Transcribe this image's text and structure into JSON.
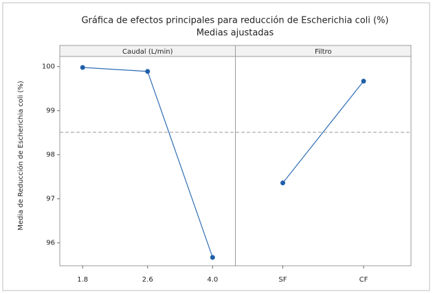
{
  "chart_data": {
    "type": "line",
    "title": "Gráfica de efectos principales para reducción de Escherichia coli (%)",
    "subtitle": "Medias ajustadas",
    "ylabel": "Media de Reducción de Escherichia coli (%)",
    "ylim": [
      95.48,
      100.23
    ],
    "yticks": [
      96,
      97,
      98,
      99,
      100
    ],
    "reference_line": 98.51,
    "color": "#2e6db4",
    "marker_color": "#1f5fa8",
    "panels": [
      {
        "name": "Caudal (L/min)",
        "categories": [
          "1.8",
          "2.6",
          "4.0"
        ],
        "values": [
          99.98,
          99.89,
          95.67
        ]
      },
      {
        "name": "Filtro",
        "categories": [
          "SF",
          "CF"
        ],
        "values": [
          97.36,
          99.67
        ]
      }
    ]
  }
}
